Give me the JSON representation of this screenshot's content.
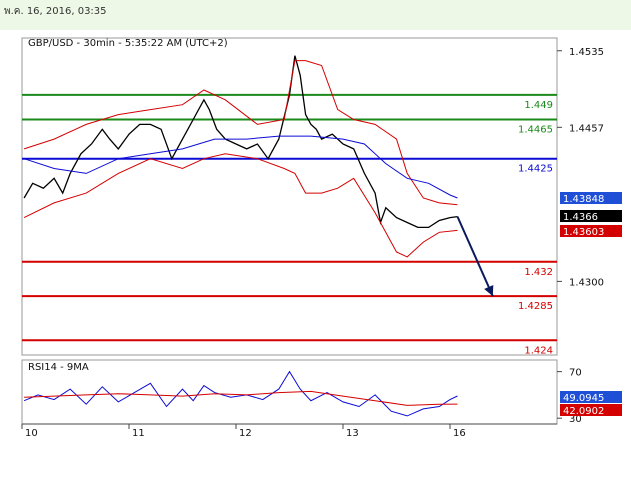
{
  "header": {
    "datetime": "พ.ค. 16, 2016, 03:35"
  },
  "chart_data": {
    "type": "line",
    "title": "GBP/USD - 30min - 5:35:22 AM (UTC+2)",
    "price_axis": {
      "ylim": [
        1.4225,
        1.4548
      ],
      "ticks": [
        {
          "value": 1.4535,
          "label": "1.4535"
        },
        {
          "value": 1.4457,
          "label": "1.4457"
        },
        {
          "value": 1.43,
          "label": "1.4300"
        }
      ]
    },
    "x_axis": {
      "labels": [
        {
          "value": 10,
          "label": "10"
        },
        {
          "value": 11,
          "label": "11"
        },
        {
          "value": 12,
          "label": "12"
        },
        {
          "value": 13,
          "label": "13"
        },
        {
          "value": 16,
          "label": "16"
        }
      ],
      "xlim": [
        0,
        5.0
      ]
    },
    "levels": [
      {
        "value": 1.449,
        "label": "1.449",
        "color": "#1a8a1a",
        "kind": "resistance"
      },
      {
        "value": 1.4465,
        "label": "1.4465",
        "color": "#1a8a1a",
        "kind": "resistance"
      },
      {
        "value": 1.4425,
        "label": "1.4425",
        "color": "#0b0bd6",
        "kind": "pivot"
      },
      {
        "value": 1.432,
        "label": "1.432",
        "color": "#d40000",
        "kind": "support"
      },
      {
        "value": 1.4285,
        "label": "1.4285",
        "color": "#d40000",
        "kind": "support"
      },
      {
        "value": 1.424,
        "label": "1.424",
        "color": "#d40000",
        "kind": "support"
      }
    ],
    "price_tags": [
      {
        "value": 1.43848,
        "label": "1.43848",
        "bg": "#1f4fd6",
        "fg": "#ffffff"
      },
      {
        "value": 1.4366,
        "label": "1.4366",
        "bg": "#000000",
        "fg": "#ffffff"
      },
      {
        "value": 1.43603,
        "label": "1.43603",
        "bg": "#d40000",
        "fg": "#ffffff"
      }
    ],
    "series": [
      {
        "name": "price",
        "color": "#000000",
        "x": [
          0.02,
          0.1,
          0.2,
          0.3,
          0.38,
          0.45,
          0.55,
          0.65,
          0.75,
          0.82,
          0.9,
          1.0,
          1.1,
          1.2,
          1.3,
          1.4,
          1.5,
          1.6,
          1.7,
          1.75,
          1.82,
          1.9,
          2.0,
          2.1,
          2.2,
          2.3,
          2.4,
          2.5,
          2.55,
          2.6,
          2.65,
          2.7,
          2.75,
          2.8,
          2.9,
          3.0,
          3.1,
          3.2,
          3.3,
          3.35,
          3.4,
          3.5,
          3.6,
          3.7,
          3.8,
          3.9,
          4.0,
          4.07
        ],
        "y": [
          1.4385,
          1.44,
          1.4395,
          1.4405,
          1.439,
          1.441,
          1.443,
          1.444,
          1.4455,
          1.4445,
          1.4435,
          1.445,
          1.446,
          1.446,
          1.4455,
          1.4425,
          1.4445,
          1.4465,
          1.4485,
          1.4475,
          1.4455,
          1.4445,
          1.444,
          1.4435,
          1.444,
          1.4425,
          1.4445,
          1.449,
          1.453,
          1.451,
          1.447,
          1.446,
          1.4455,
          1.4445,
          1.445,
          1.444,
          1.4435,
          1.441,
          1.439,
          1.436,
          1.4375,
          1.4365,
          1.436,
          1.4355,
          1.4355,
          1.4362,
          1.4365,
          1.4366
        ]
      },
      {
        "name": "bollinger_upper",
        "color": "#d40000",
        "x": [
          0.02,
          0.3,
          0.6,
          0.9,
          1.2,
          1.5,
          1.7,
          1.9,
          2.2,
          2.45,
          2.55,
          2.65,
          2.8,
          2.95,
          3.1,
          3.3,
          3.5,
          3.6,
          3.75,
          3.9,
          4.07
        ],
        "y": [
          1.4435,
          1.4445,
          1.446,
          1.447,
          1.4475,
          1.448,
          1.4495,
          1.4485,
          1.446,
          1.4465,
          1.4525,
          1.4525,
          1.452,
          1.4475,
          1.4465,
          1.446,
          1.4445,
          1.441,
          1.4385,
          1.438,
          1.4378
        ]
      },
      {
        "name": "bollinger_lower",
        "color": "#d40000",
        "x": [
          0.02,
          0.3,
          0.6,
          0.9,
          1.2,
          1.5,
          1.7,
          1.9,
          2.2,
          2.45,
          2.55,
          2.65,
          2.8,
          2.95,
          3.1,
          3.3,
          3.5,
          3.6,
          3.75,
          3.9,
          4.07
        ],
        "y": [
          1.4365,
          1.438,
          1.439,
          1.441,
          1.4425,
          1.4415,
          1.4425,
          1.443,
          1.4425,
          1.4415,
          1.441,
          1.439,
          1.439,
          1.4395,
          1.4405,
          1.437,
          1.433,
          1.4325,
          1.434,
          1.435,
          1.4352
        ]
      },
      {
        "name": "moving_average",
        "color": "#0b0bd6",
        "x": [
          0.02,
          0.3,
          0.6,
          0.9,
          1.2,
          1.5,
          1.8,
          2.1,
          2.4,
          2.7,
          3.0,
          3.2,
          3.4,
          3.6,
          3.8,
          4.0,
          4.07
        ],
        "y": [
          1.4425,
          1.4415,
          1.441,
          1.4425,
          1.443,
          1.4435,
          1.4445,
          1.4445,
          1.4448,
          1.4448,
          1.4445,
          1.444,
          1.442,
          1.4405,
          1.44,
          1.4388,
          1.4385
        ]
      }
    ],
    "projection": {
      "from": [
        4.07,
        1.4366
      ],
      "to": [
        4.4,
        1.4285
      ],
      "color": "#0a1a5c"
    },
    "rsi": {
      "label": "RSI14 - 9MA",
      "ylim": [
        25,
        80
      ],
      "ticks": [
        {
          "value": 70,
          "label": "70"
        },
        {
          "value": 30,
          "label": "30"
        }
      ],
      "rsi_tag": {
        "value": 49.0945,
        "label": "49.0945",
        "bg": "#1f4fd6",
        "fg": "#ffffff"
      },
      "ma_tag": {
        "value": 42.0902,
        "label": "42.0902",
        "bg": "#d40000",
        "fg": "#ffffff"
      },
      "series": [
        {
          "name": "rsi",
          "color": "#0b0bd6",
          "x": [
            0.02,
            0.15,
            0.3,
            0.45,
            0.6,
            0.75,
            0.9,
            1.05,
            1.2,
            1.35,
            1.5,
            1.6,
            1.7,
            1.8,
            1.95,
            2.1,
            2.25,
            2.4,
            2.5,
            2.6,
            2.7,
            2.85,
            3.0,
            3.15,
            3.3,
            3.45,
            3.6,
            3.75,
            3.9,
            4.0,
            4.07
          ],
          "y": [
            45,
            50,
            46,
            55,
            42,
            57,
            44,
            52,
            60,
            40,
            55,
            45,
            58,
            52,
            48,
            50,
            46,
            55,
            70,
            55,
            45,
            52,
            44,
            40,
            50,
            36,
            32,
            38,
            40,
            46,
            49.0945
          ]
        },
        {
          "name": "rsi_ma",
          "color": "#d40000",
          "x": [
            0.02,
            0.3,
            0.6,
            0.9,
            1.2,
            1.5,
            1.8,
            2.1,
            2.4,
            2.7,
            3.0,
            3.3,
            3.6,
            3.9,
            4.07
          ],
          "y": [
            48,
            49,
            50,
            51,
            50,
            49,
            51,
            50,
            52,
            53,
            49,
            45,
            41,
            42,
            42.0902
          ]
        }
      ]
    }
  }
}
